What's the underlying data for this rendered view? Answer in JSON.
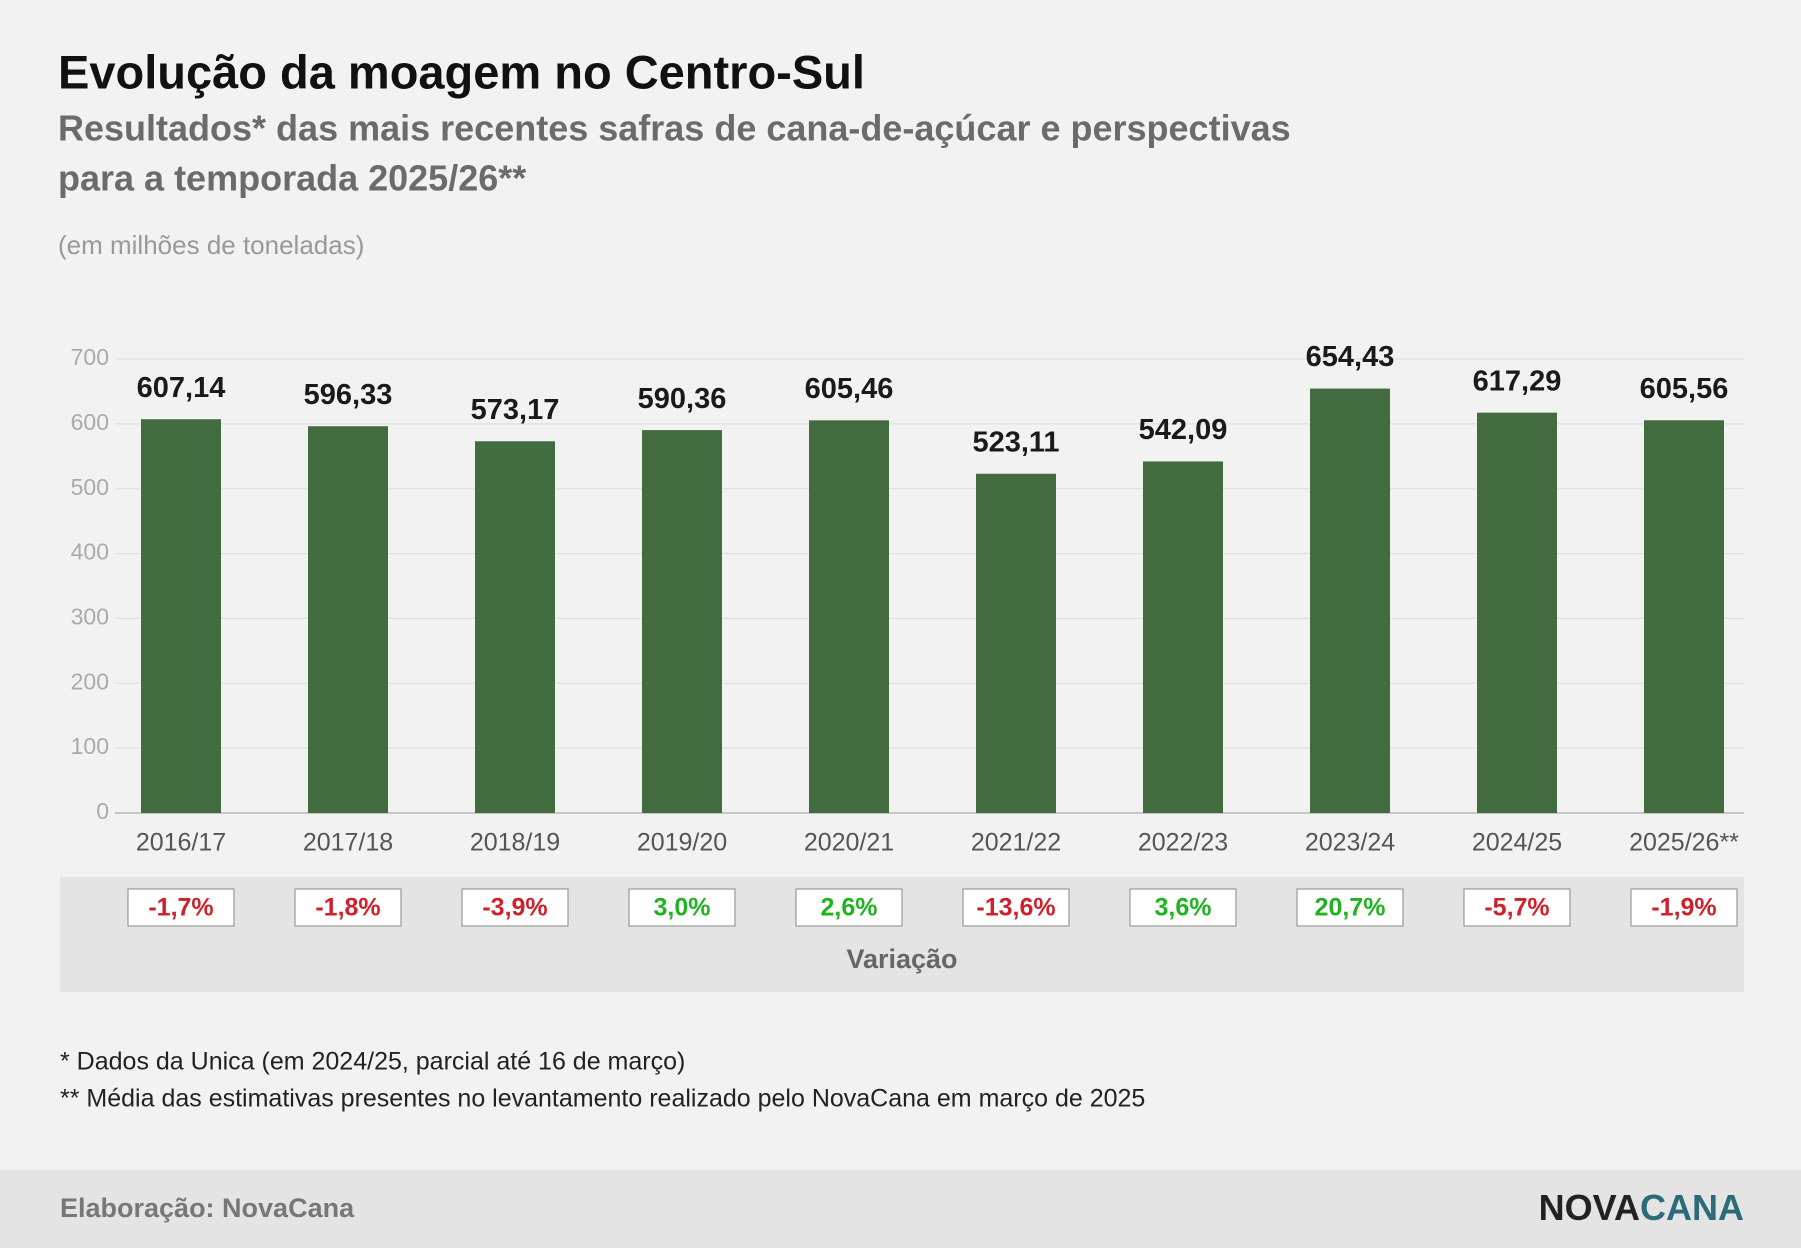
{
  "chart_data": {
    "type": "bar",
    "title": "Evolução da moagem no Centro-Sul",
    "subtitle": [
      "Resultados* das mais recentes safras de cana-de-açúcar e perspectivas",
      "para a temporada 2025/26**"
    ],
    "unit_note": "(em milhões de toneladas)",
    "categories": [
      "2016/17",
      "2017/18",
      "2018/19",
      "2019/20",
      "2020/21",
      "2021/22",
      "2022/23",
      "2023/24",
      "2024/25",
      "2025/26**"
    ],
    "values": [
      607.14,
      596.33,
      573.17,
      590.36,
      605.46,
      523.11,
      542.09,
      654.43,
      617.29,
      605.56
    ],
    "value_labels": [
      "607,14",
      "596,33",
      "573,17",
      "590,36",
      "605,46",
      "523,11",
      "542,09",
      "654,43",
      "617,29",
      "605,56"
    ],
    "color": "#426b40",
    "ylim": [
      0,
      700
    ],
    "yticks": [
      0,
      100,
      200,
      300,
      400,
      500,
      600,
      700
    ],
    "grid": true,
    "change_title": "Variação",
    "changes": [
      -1.7,
      -1.8,
      -3.9,
      3.0,
      2.6,
      -13.6,
      3.6,
      20.7,
      -5.7,
      -1.9
    ],
    "change_labels": [
      "-1,7%",
      "-1,8%",
      "-3,9%",
      "3,0%",
      "2,6%",
      "-13,6%",
      "3,6%",
      "20,7%",
      "-5,7%",
      "-1,9%"
    ],
    "positive_color": "#1fb41f",
    "negative_color": "#d0202a"
  },
  "notes": [
    "* Dados da Unica (em 2024/25, parcial até 16 de março)",
    "** Média das estimativas presentes no levantamento realizado pelo NovaCana em março de 2025"
  ],
  "source": "Elaboração: NovaCana",
  "brand": {
    "first": "NOVA",
    "second": "CANA"
  }
}
